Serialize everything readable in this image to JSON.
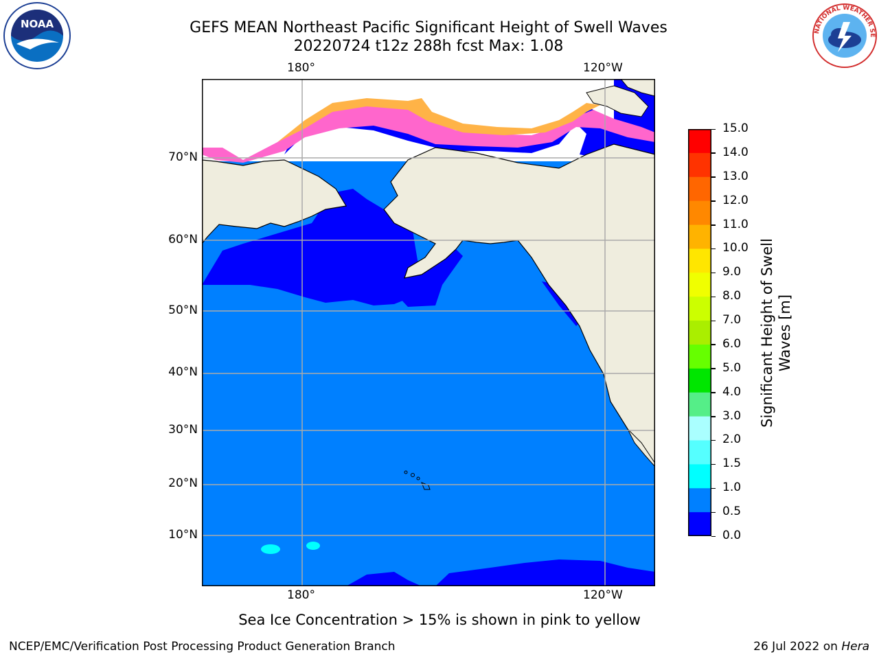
{
  "header": {
    "title_line1": "GEFS MEAN Northeast Pacific Significant Height of Swell Waves",
    "title_line2": "20220724 t12z 288h fcst   Max: 1.08"
  },
  "logos": {
    "left": {
      "icon": "noaa-logo-icon",
      "text": "NOAA"
    },
    "right": {
      "icon": "nws-logo-icon",
      "text": "NATIONAL WEATHER SERVICE"
    }
  },
  "map": {
    "lon_labels": [
      "180°",
      "120°W"
    ],
    "lat_labels": [
      "70°N",
      "60°N",
      "50°N",
      "40°N",
      "30°N",
      "20°N",
      "10°N"
    ],
    "colors": {
      "land": "#efedde",
      "ocean_low": "#0080ff",
      "ocean_lowest": "#0000ff",
      "ice_pink": "#ff66cc",
      "ice_orange": "#ffb347",
      "ice_yellow": "#ffd166",
      "grid": "#aaaaaa"
    }
  },
  "colorbar": {
    "label": "Significant Height of Swell Waves [m]",
    "ticks": [
      "15.0",
      "14.0",
      "13.0",
      "12.0",
      "11.0",
      "10.0",
      "9.0",
      "8.0",
      "7.0",
      "6.0",
      "5.0",
      "4.0",
      "3.0",
      "2.0",
      "1.5",
      "1.0",
      "0.5",
      "0.0"
    ],
    "colors": [
      "#ff0000",
      "#ff3300",
      "#ff6600",
      "#ff8800",
      "#ffb300",
      "#ffe600",
      "#f0ff00",
      "#ccff00",
      "#aaee00",
      "#66ff00",
      "#00e600",
      "#55ee88",
      "#aaffff",
      "#55ffff",
      "#00ffff",
      "#0080ff",
      "#0000ff"
    ]
  },
  "note": "Sea Ice Concentration > 15% is shown in pink to yellow",
  "footer": {
    "left": "NCEP/EMC/Verification Post Processing Product Generation Branch",
    "right_prefix": "26 Jul 2022 on ",
    "right_italic": "Hera"
  }
}
